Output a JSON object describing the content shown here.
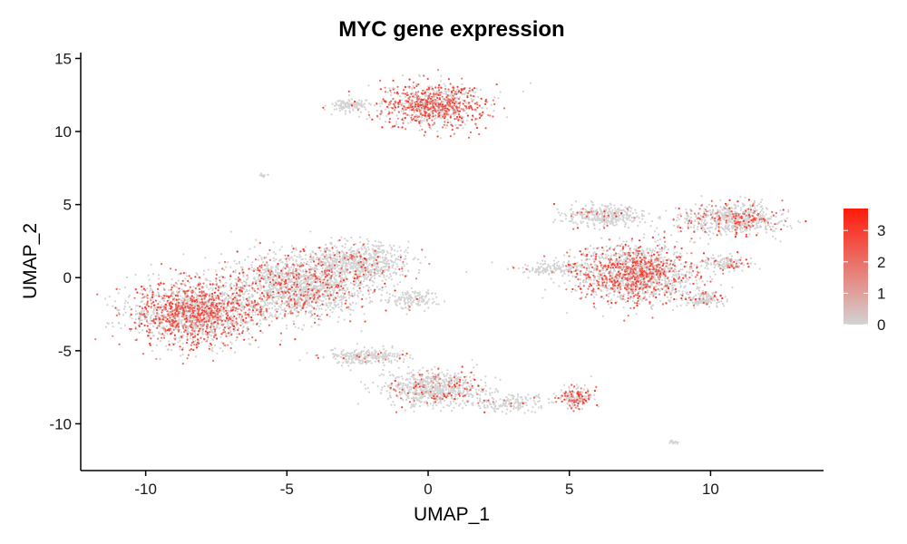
{
  "chart_data": {
    "type": "scatter",
    "title": "MYC gene expression",
    "xlabel": "UMAP_1",
    "ylabel": "UMAP_2",
    "xlim": [
      -12.3,
      14.0
    ],
    "ylim": [
      -13.2,
      15.4
    ],
    "x_ticks": [
      -10,
      -5,
      0,
      5,
      10
    ],
    "y_ticks": [
      -10,
      -5,
      0,
      5,
      10,
      15
    ],
    "x_tick_labels": [
      "-10",
      "-5",
      "0",
      "5",
      "10"
    ],
    "y_tick_labels": [
      "-10",
      "-5",
      "0",
      "5",
      "10",
      "15"
    ],
    "grid": false,
    "legend": {
      "placement": "right",
      "type": "colorbar",
      "min": 0,
      "max": 3.7,
      "ticks": [
        0,
        1,
        2,
        3
      ],
      "tick_labels": [
        "0",
        "1",
        "2",
        "3"
      ],
      "low_color": "#d3d3d3",
      "high_color": "#ff1a0a"
    },
    "colors": {
      "low": "#d3d3d3",
      "high": "#ff1a0a"
    },
    "point_clusters": [
      {
        "name": "top",
        "center": [
          0.2,
          11.8
        ],
        "spread": [
          1.2,
          1.0
        ],
        "count": 900,
        "expr_frac": 0.55
      },
      {
        "name": "top-left small",
        "center": [
          -2.8,
          11.8
        ],
        "spread": [
          0.5,
          0.25
        ],
        "count": 120,
        "expr_frac": 0.02
      },
      {
        "name": "tiny",
        "center": [
          -5.8,
          7.0
        ],
        "spread": [
          0.12,
          0.1
        ],
        "count": 12,
        "expr_frac": 0.0
      },
      {
        "name": "left",
        "center": [
          -8.3,
          -2.4
        ],
        "spread": [
          1.5,
          1.4
        ],
        "count": 1800,
        "expr_frac": 0.4
      },
      {
        "name": "left-mid",
        "center": [
          -4.6,
          -0.6
        ],
        "spread": [
          1.6,
          1.4
        ],
        "count": 1500,
        "expr_frac": 0.2
      },
      {
        "name": "left-upper",
        "center": [
          -2.5,
          1.0
        ],
        "spread": [
          1.2,
          0.9
        ],
        "count": 700,
        "expr_frac": 0.1
      },
      {
        "name": "left-tail",
        "center": [
          -0.6,
          -1.5
        ],
        "spread": [
          0.6,
          0.4
        ],
        "count": 140,
        "expr_frac": 0.05
      },
      {
        "name": "bottom",
        "center": [
          0.3,
          -7.6
        ],
        "spread": [
          1.2,
          0.8
        ],
        "count": 750,
        "expr_frac": 0.1
      },
      {
        "name": "bottom-arm",
        "center": [
          -2.2,
          -5.4
        ],
        "spread": [
          1.0,
          0.35
        ],
        "count": 250,
        "expr_frac": 0.05
      },
      {
        "name": "bottom-tail",
        "center": [
          3.0,
          -8.6
        ],
        "spread": [
          0.9,
          0.35
        ],
        "count": 160,
        "expr_frac": 0.05
      },
      {
        "name": "bottom-right",
        "center": [
          5.2,
          -8.2
        ],
        "spread": [
          0.4,
          0.45
        ],
        "count": 180,
        "expr_frac": 0.45
      },
      {
        "name": "far",
        "center": [
          8.7,
          -11.3
        ],
        "spread": [
          0.15,
          0.08
        ],
        "count": 15,
        "expr_frac": 0.0
      },
      {
        "name": "right-main",
        "center": [
          7.3,
          0.3
        ],
        "spread": [
          1.4,
          1.3
        ],
        "count": 1600,
        "expr_frac": 0.35
      },
      {
        "name": "right-top",
        "center": [
          6.3,
          4.2
        ],
        "spread": [
          0.9,
          0.45
        ],
        "count": 350,
        "expr_frac": 0.05
      },
      {
        "name": "right-arm",
        "center": [
          10.8,
          4.0
        ],
        "spread": [
          1.2,
          0.7
        ],
        "count": 650,
        "expr_frac": 0.2
      },
      {
        "name": "right-tip",
        "center": [
          10.5,
          1.0
        ],
        "spread": [
          0.6,
          0.4
        ],
        "count": 150,
        "expr_frac": 0.1
      },
      {
        "name": "right-lowtail",
        "center": [
          9.8,
          -1.5
        ],
        "spread": [
          0.5,
          0.35
        ],
        "count": 150,
        "expr_frac": 0.1
      },
      {
        "name": "right-lefttail",
        "center": [
          4.5,
          0.6
        ],
        "spread": [
          0.8,
          0.3
        ],
        "count": 150,
        "expr_frac": 0.03
      }
    ]
  }
}
